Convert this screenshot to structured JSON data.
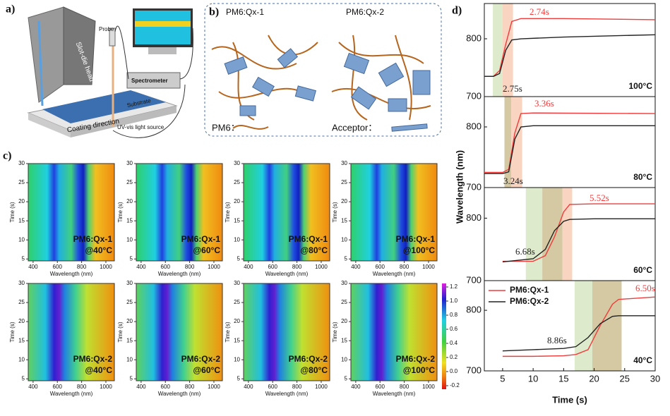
{
  "panel_a": {
    "label": "a)",
    "slot_die_head": "Slot-die head",
    "probe": "Probe",
    "spectrometer": "Spectrometer",
    "substrate": "Substrate",
    "coating_direction": "Coating direction",
    "light_source": "UV-vis light source"
  },
  "panel_b": {
    "label": "b)",
    "left": "PM6:Qx-1",
    "right": "PM6:Qx-2",
    "pm6": "PM6：",
    "acceptor": "Acceptor："
  },
  "panel_c": {
    "label": "c)",
    "ylabel": "Time (s)",
    "xlabel": "Wavelength (nm)",
    "xlim": [
      360,
      1070
    ],
    "xticks": [
      400,
      600,
      800,
      1000
    ],
    "ylim": [
      4.5,
      30
    ],
    "yticks": [
      5,
      10,
      15,
      20,
      25,
      30
    ],
    "maps": [
      {
        "name": "PM6:Qx-1",
        "temp": "@40°C"
      },
      {
        "name": "PM6:Qx-1",
        "temp": "@60°C"
      },
      {
        "name": "PM6:Qx-1",
        "temp": "@80°C"
      },
      {
        "name": "PM6:Qx-1",
        "temp": "@100°C"
      },
      {
        "name": "PM6:Qx-2",
        "temp": "@40°C"
      },
      {
        "name": "PM6:Qx-2",
        "temp": "@60°C"
      },
      {
        "name": "PM6:Qx-2",
        "temp": "@80°C"
      },
      {
        "name": "PM6:Qx-2",
        "temp": "@100°C"
      }
    ],
    "colorbar": {
      "lim": [
        -0.25,
        1.25
      ],
      "ticks": [
        {
          "value": 1.2,
          "label": "1.2"
        },
        {
          "value": 1,
          "label": "1.0"
        },
        {
          "value": 0.8,
          "label": "0.8"
        },
        {
          "value": 0.6,
          "label": "0.6"
        },
        {
          "value": 0.4,
          "label": "0.4"
        },
        {
          "value": 0.2,
          "label": "0.2"
        },
        {
          "value": 0,
          "label": "0.0"
        },
        {
          "value": -0.2,
          "label": "-0.2"
        }
      ]
    }
  },
  "panel_d": {
    "label": "d)",
    "type": "line",
    "ylabel": "Wavelength (nm)",
    "xlabel": "Time (s)",
    "xlim": [
      2,
      30
    ],
    "xticks": [
      5,
      10,
      15,
      20,
      25,
      30
    ],
    "series_names": [
      "PM6:Qx-1",
      "PM6:Qx-2"
    ],
    "colors": [
      "#f03c3c",
      "#222222"
    ],
    "legend": "upper left",
    "plots": [
      {
        "temp": "100°C",
        "ylim": [
          700,
          861
        ],
        "yticks": [
          700,
          800
        ],
        "x": [
          2,
          3.5,
          4.5,
          5.5,
          6.5,
          8,
          15,
          30
        ],
        "series": [
          {
            "values": [
              735,
              735,
              745,
              790,
              830,
              835,
              835,
              833
            ],
            "label": "2.74s"
          },
          {
            "values": [
              735,
              735,
              740,
              780,
              798,
              800,
              803,
              807
            ],
            "label": "2.75s"
          }
        ],
        "spans": [
          {
            "from": 3.4,
            "to": 5,
            "color": "#d4e6bf"
          },
          {
            "from": 5,
            "to": 6.7,
            "color": "#f7c9b2"
          }
        ]
      },
      {
        "temp": "80°C",
        "ylim": [
          700,
          850
        ],
        "yticks": [
          700,
          800
        ],
        "x": [
          2,
          5,
          6,
          7,
          8,
          10,
          30
        ],
        "series": [
          {
            "values": [
              725,
              725,
              730,
              790,
              822,
              823,
              822
            ],
            "label": "3.36s"
          },
          {
            "values": [
              723,
              723,
              726,
              780,
              800,
              802,
              802
            ],
            "label": "3.24s"
          }
        ],
        "spans": [
          {
            "from": 5.3,
            "to": 6.4,
            "color": "#c9bb8c"
          },
          {
            "from": 6.4,
            "to": 8.2,
            "color": "#f7c9b2"
          }
        ]
      },
      {
        "temp": "60°C",
        "ylim": [
          700,
          849
        ],
        "yticks": [
          700,
          800
        ],
        "x": [
          5,
          10,
          12,
          13.5,
          15,
          16,
          20,
          30
        ],
        "series": [
          {
            "values": [
              731,
              731,
              740,
              770,
              810,
              822,
              823,
              823
            ],
            "label": "5.52s"
          },
          {
            "values": [
              730,
              735,
              750,
              780,
              795,
              798,
              799,
              799
            ],
            "label": "6.68s"
          }
        ],
        "spans": [
          {
            "from": 8.8,
            "to": 11.5,
            "color": "#d4e6bf"
          },
          {
            "from": 11.5,
            "to": 14.8,
            "color": "#c9bb8c"
          },
          {
            "from": 14.8,
            "to": 16.4,
            "color": "#f7c9b2"
          }
        ]
      },
      {
        "temp": "40°C",
        "ylim": [
          700,
          849
        ],
        "yticks": [
          700,
          800
        ],
        "x": [
          5,
          10,
          15,
          17,
          19,
          21,
          23,
          24,
          30
        ],
        "series": [
          {
            "values": [
              724,
              724,
              725,
              727,
              735,
              775,
              810,
              818,
              822
            ],
            "label": "6.50s"
          },
          {
            "values": [
              733,
              735,
              737,
              740,
              755,
              778,
              790,
              791,
              791
            ],
            "label": "8.86s"
          }
        ],
        "spans": [
          {
            "from": 16.8,
            "to": 19.7,
            "color": "#d4e6bf"
          },
          {
            "from": 19.7,
            "to": 24.5,
            "color": "#c9bb8c"
          }
        ]
      }
    ]
  }
}
